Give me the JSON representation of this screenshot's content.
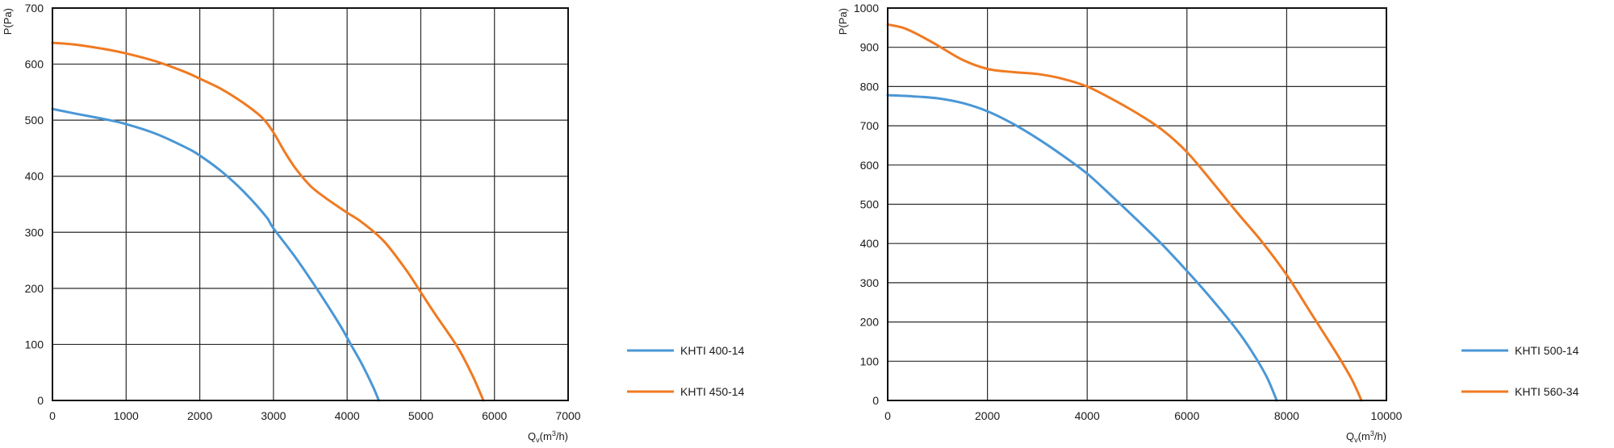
{
  "chart_data": [
    {
      "type": "line",
      "xlabel": "Q_v(m³/h)",
      "xlabel_base": "Q",
      "xlabel_sub": "v",
      "xlabel_rest": "(m",
      "xlabel_sup": "3",
      "xlabel_end": "/h)",
      "ylabel": "P(Pa)",
      "xlim": [
        0,
        7000
      ],
      "ylim": [
        0,
        700
      ],
      "xticks": [
        0,
        1000,
        2000,
        3000,
        4000,
        5000,
        6000,
        7000
      ],
      "xtick_labels": [
        "0",
        "1000",
        "2000",
        "3000",
        "4000",
        "5000",
        "6000",
        "7000"
      ],
      "yticks": [
        0,
        100,
        200,
        300,
        400,
        500,
        600,
        700
      ],
      "ytick_labels": [
        "0",
        "100",
        "200",
        "300",
        "400",
        "500",
        "600",
        "700"
      ],
      "grid": true,
      "legend_position": "bottom-right-outside",
      "series": [
        {
          "name": "KHTI 400-14",
          "color": "#4a97d6",
          "x": [
            0,
            300,
            700,
            1000,
            1400,
            1800,
            2000,
            2300,
            2600,
            2900,
            3000,
            3300,
            3600,
            3900,
            4050,
            4200,
            4350,
            4430
          ],
          "y": [
            520,
            512,
            502,
            493,
            476,
            452,
            437,
            408,
            372,
            328,
            307,
            255,
            197,
            135,
            100,
            65,
            25,
            0
          ]
        },
        {
          "name": "KHTI 450-14",
          "color": "#f07a22",
          "x": [
            0,
            300,
            700,
            1000,
            1400,
            1800,
            2000,
            2300,
            2600,
            2850,
            3000,
            3150,
            3300,
            3500,
            3700,
            4000,
            4200,
            4500,
            4800,
            5000,
            5200,
            5500,
            5700,
            5850
          ],
          "y": [
            638,
            635,
            627,
            619,
            605,
            586,
            574,
            555,
            530,
            504,
            478,
            444,
            414,
            383,
            362,
            335,
            318,
            284,
            233,
            193,
            153,
            95,
            45,
            0
          ]
        }
      ]
    },
    {
      "type": "line",
      "xlabel": "Q_v(m³/h)",
      "xlabel_base": "Q",
      "xlabel_sub": "v",
      "xlabel_rest": "(m",
      "xlabel_sup": "3",
      "xlabel_end": "/h)",
      "ylabel": "P(Pa)",
      "xlim": [
        0,
        10000
      ],
      "ylim": [
        0,
        1000
      ],
      "xticks": [
        0,
        2000,
        4000,
        6000,
        8000,
        10000
      ],
      "xtick_labels": [
        "0",
        "2000",
        "4000",
        "6000",
        "8000",
        "10000"
      ],
      "yticks": [
        0,
        100,
        200,
        300,
        400,
        500,
        600,
        700,
        800,
        900,
        1000
      ],
      "ytick_labels": [
        "0",
        "100",
        "200",
        "300",
        "400",
        "500",
        "600",
        "700",
        "800",
        "900",
        "1000"
      ],
      "grid": true,
      "legend_position": "bottom-right-outside",
      "series": [
        {
          "name": "KHTI 500-14",
          "color": "#4a97d6",
          "x": [
            0,
            500,
            1000,
            1500,
            2000,
            2500,
            3000,
            3500,
            4000,
            4500,
            5000,
            5500,
            6000,
            6500,
            7000,
            7300,
            7600,
            7800
          ],
          "y": [
            778,
            775,
            770,
            758,
            737,
            706,
            668,
            625,
            578,
            520,
            460,
            398,
            330,
            258,
            180,
            125,
            60,
            0
          ]
        },
        {
          "name": "KHTI 560-34",
          "color": "#f07a22",
          "x": [
            0,
            300,
            600,
            1000,
            1500,
            2000,
            2500,
            3000,
            3500,
            4000,
            4500,
            5000,
            5500,
            6000,
            6500,
            7000,
            7500,
            8000,
            8500,
            9000,
            9300,
            9500
          ],
          "y": [
            958,
            950,
            933,
            905,
            868,
            845,
            837,
            832,
            820,
            800,
            768,
            732,
            690,
            633,
            558,
            480,
            405,
            320,
            220,
            120,
            55,
            0
          ]
        }
      ]
    }
  ]
}
